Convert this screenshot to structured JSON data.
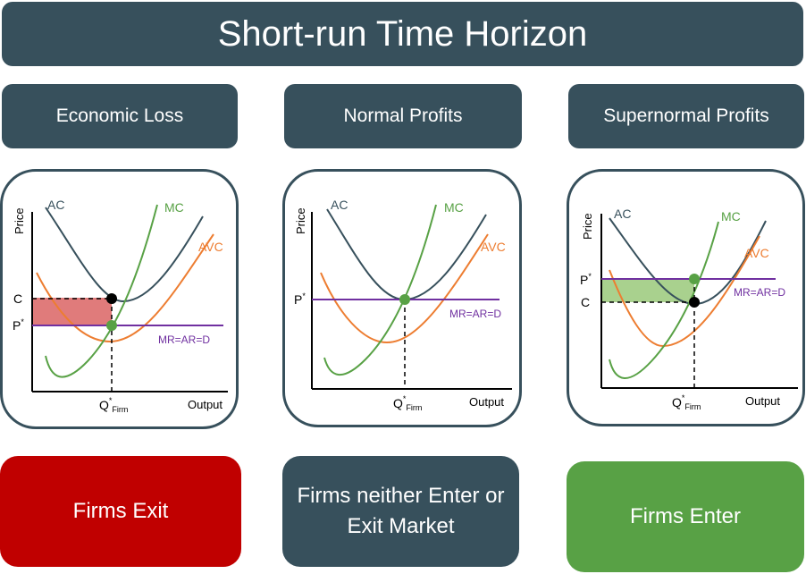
{
  "title": "Short-run Time Horizon",
  "colors": {
    "header": "#37505c",
    "ac": "#37505c",
    "mc": "#58a145",
    "avc": "#ed7d31",
    "demand": "#7030a0",
    "loss_fill": "#e07b7b",
    "profit_fill": "#a9d18e",
    "exit": "#c00000",
    "enter": "#58a145"
  },
  "panels": [
    {
      "heading": "Economic Loss",
      "outcome": "Firms Exit",
      "graph": {
        "y_axis": "Price",
        "x_axis": "Output",
        "curves": {
          "ac": "AC",
          "mc": "MC",
          "avc": "AVC",
          "demand": "MR=AR=D"
        },
        "price_label": "P",
        "price_sup": "*",
        "cost_label": "C",
        "q_label": "Q",
        "q_sup": "*",
        "q_sub": "Firm",
        "shaded": "loss"
      }
    },
    {
      "heading": "Normal Profits",
      "outcome": "Firms neither Enter or Exit Market",
      "graph": {
        "y_axis": "Price",
        "x_axis": "Output",
        "curves": {
          "ac": "AC",
          "mc": "MC",
          "avc": "AVC",
          "demand": "MR=AR=D"
        },
        "price_label": "P",
        "price_sup": "*",
        "q_label": "Q",
        "q_sup": "*",
        "q_sub": "Firm",
        "shaded": "none"
      }
    },
    {
      "heading": "Supernormal Profits",
      "outcome": "Firms Enter",
      "graph": {
        "y_axis": "Price",
        "x_axis": "Output",
        "curves": {
          "ac": "AC",
          "mc": "MC",
          "avc": "AVC",
          "demand": "MR=AR=D"
        },
        "price_label": "P",
        "price_sup": "*",
        "cost_label": "C",
        "q_label": "Q",
        "q_sup": "*",
        "q_sub": "Firm",
        "shaded": "profit"
      }
    }
  ]
}
